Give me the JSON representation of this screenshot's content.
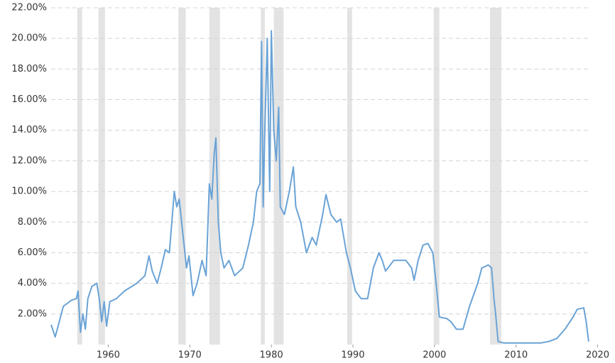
{
  "chart_data": {
    "type": "line",
    "x": [
      1953.0,
      1953.5,
      1954.0,
      1954.5,
      1955.5,
      1956.1,
      1956.3,
      1956.6,
      1956.9,
      1957.2,
      1957.5,
      1958.0,
      1958.6,
      1958.9,
      1959.2,
      1959.5,
      1959.8,
      1960.2,
      1961.0,
      1962.0,
      1963.5,
      1964.5,
      1965.0,
      1965.4,
      1966.0,
      1966.5,
      1967.0,
      1967.5,
      1968.1,
      1968.4,
      1968.7,
      1969.1,
      1969.6,
      1969.9,
      1970.4,
      1970.9,
      1971.5,
      1972.0,
      1972.4,
      1972.7,
      1973.0,
      1973.2,
      1973.5,
      1973.8,
      1974.2,
      1974.8,
      1975.5,
      1976.5,
      1977.2,
      1977.8,
      1978.2,
      1978.6,
      1978.8,
      1979.0,
      1979.2,
      1979.5,
      1979.8,
      1980.0,
      1980.3,
      1980.6,
      1980.9,
      1981.1,
      1981.6,
      1982.2,
      1982.7,
      1983.0,
      1983.6,
      1984.3,
      1985.0,
      1985.5,
      1986.3,
      1986.7,
      1987.3,
      1988.0,
      1988.5,
      1989.2,
      1989.7,
      1990.3,
      1991.0,
      1991.8,
      1992.5,
      1993.2,
      1993.6,
      1994.0,
      1995.0,
      1996.5,
      1997.2,
      1997.5,
      1998.0,
      1998.6,
      1999.2,
      1999.8,
      2000.2,
      2000.6,
      2001.5,
      2002.0,
      2002.7,
      2003.5,
      2004.3,
      2005.3,
      2005.8,
      2006.6,
      2007.0,
      2007.3,
      2007.5,
      2007.8,
      2008.5,
      2011.0,
      2013.0,
      2014.0,
      2015.0,
      2016.0,
      2017.0,
      2017.5,
      2018.3,
      2018.6,
      2018.9
    ],
    "series": [
      {
        "color": "#6aa3d6",
        "values": [
          1.3,
          0.5,
          1.5,
          2.5,
          2.9,
          3.0,
          3.5,
          0.8,
          2.0,
          1.0,
          3.0,
          3.8,
          4.0,
          3.0,
          1.5,
          2.8,
          1.2,
          2.8,
          3.0,
          3.5,
          4.0,
          4.5,
          5.8,
          4.8,
          4.0,
          5.0,
          6.2,
          6.0,
          10.0,
          9.0,
          9.5,
          7.5,
          5.0,
          5.8,
          3.2,
          4.0,
          5.5,
          4.5,
          10.5,
          9.5,
          12.5,
          13.5,
          8.0,
          6.0,
          5.0,
          5.5,
          4.5,
          5.0,
          6.5,
          8.0,
          10.0,
          10.5,
          19.8,
          9.0,
          14.0,
          20.0,
          10.0,
          20.5,
          14.0,
          12.0,
          15.5,
          9.0,
          8.5,
          10.0,
          11.6,
          9.0,
          8.0,
          6.0,
          7.0,
          6.5,
          8.5,
          9.8,
          8.5,
          8.0,
          8.2,
          6.0,
          5.0,
          3.5,
          3.0,
          3.0,
          5.0,
          6.0,
          5.5,
          4.8,
          5.5,
          5.5,
          5.0,
          4.2,
          5.5,
          6.5,
          6.6,
          6.0,
          4.0,
          1.8,
          1.7,
          1.5,
          1.0,
          1.0,
          2.5,
          4.0,
          5.0,
          5.2,
          5.0,
          3.0,
          2.0,
          0.2,
          0.1,
          0.1,
          0.1,
          0.2,
          0.4,
          1.0,
          1.8,
          2.3,
          2.4,
          1.5,
          0.2
        ]
      }
    ],
    "recessions": [
      [
        1956.2,
        1956.8
      ],
      [
        1958.8,
        1959.6
      ],
      [
        1968.6,
        1969.5
      ],
      [
        1972.4,
        1973.7
      ],
      [
        1978.7,
        1979.2
      ],
      [
        1980.3,
        1981.5
      ],
      [
        1989.3,
        1989.9
      ],
      [
        1999.9,
        2000.6
      ],
      [
        2006.8,
        2008.2
      ]
    ],
    "xlim": [
      1953,
      2019
    ],
    "xticks": [
      1960,
      1970,
      1980,
      1990,
      2000,
      2010,
      2020
    ],
    "ylim": [
      0,
      22
    ],
    "yticks": [
      {
        "value": 2,
        "label": "2.00%"
      },
      {
        "value": 4,
        "label": "4.00%"
      },
      {
        "value": 6,
        "label": "6.00%"
      },
      {
        "value": 8,
        "label": "8.00%"
      },
      {
        "value": 10,
        "label": "10.00%"
      },
      {
        "value": 12,
        "label": "12.00%"
      },
      {
        "value": 14,
        "label": "14.00%"
      },
      {
        "value": 16,
        "label": "16.00%"
      },
      {
        "value": 18,
        "label": "18.00%"
      },
      {
        "value": 20,
        "label": "20.00%"
      },
      {
        "value": 22,
        "label": "22.00%"
      }
    ],
    "grid": true,
    "recession_color": "#e3e3e3"
  }
}
